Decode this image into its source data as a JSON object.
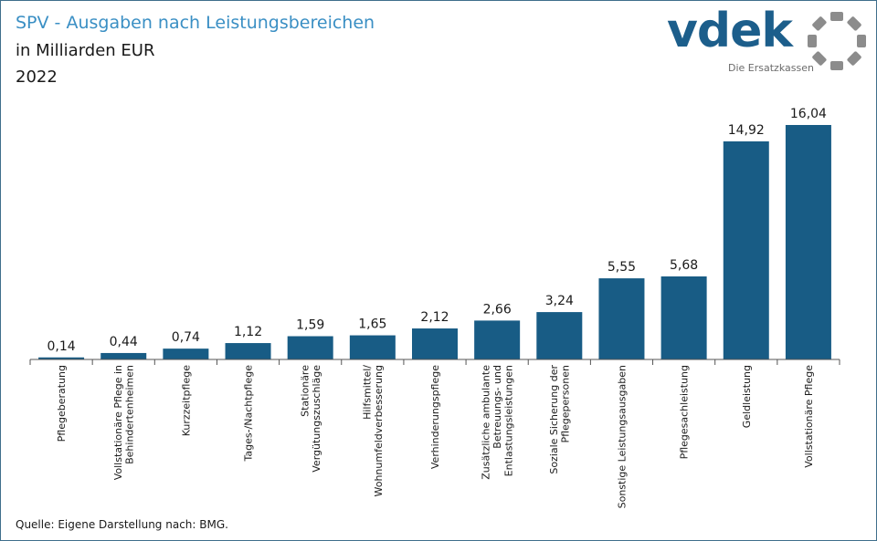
{
  "header": {
    "title": "SPV - Ausgaben nach Leistungsbereichen",
    "subtitle": "in Milliarden EUR",
    "year": "2022"
  },
  "logo": {
    "wordmark": "vdek",
    "tagline": "Die Ersatzkassen",
    "colors": {
      "word": "#1c5e8b",
      "ring": "#8c8c8c"
    }
  },
  "footer": {
    "source": "Quelle: Eigene Darstellung nach: BMG."
  },
  "colors": {
    "bar": "#185c85",
    "axis": "#555555",
    "title": "#3a8fc4",
    "border": "#3f6f8c"
  },
  "chart_data": {
    "type": "bar",
    "title": "SPV - Ausgaben nach Leistungsbereichen",
    "ylabel": "",
    "xlabel": "",
    "ylim": [
      0,
      16.04
    ],
    "grid": false,
    "categories": [
      [
        "Pflegeberatung"
      ],
      [
        "Vollstationäre Pflege in",
        "Behindertenheimen"
      ],
      [
        "Kurzzeitpflege"
      ],
      [
        "Tages-/Nachtpflege"
      ],
      [
        "Stationäre",
        "Vergütungszuschläge"
      ],
      [
        "Hilfsmittel/",
        "Wohnumfeldverbesserung"
      ],
      [
        "Verhinderungspflege"
      ],
      [
        "Zusätzliche ambulante",
        "Betreuungs- und",
        "Entlastungsleistungen"
      ],
      [
        "Soziale Sicherung der",
        "Pflegepersonen"
      ],
      [
        "Sonstige Leistungsausgaben"
      ],
      [
        "Pflegesachleistung"
      ],
      [
        "Geldleistung"
      ],
      [
        "Vollstationäre Pflege"
      ]
    ],
    "values": [
      0.14,
      0.44,
      0.74,
      1.12,
      1.59,
      1.65,
      2.12,
      2.66,
      3.24,
      5.55,
      5.68,
      14.92,
      16.04
    ],
    "value_labels": [
      "0,14",
      "0,44",
      "0,74",
      "1,12",
      "1,59",
      "1,65",
      "2,12",
      "2,66",
      "3,24",
      "5,55",
      "5,68",
      "14,92",
      "16,04"
    ]
  }
}
